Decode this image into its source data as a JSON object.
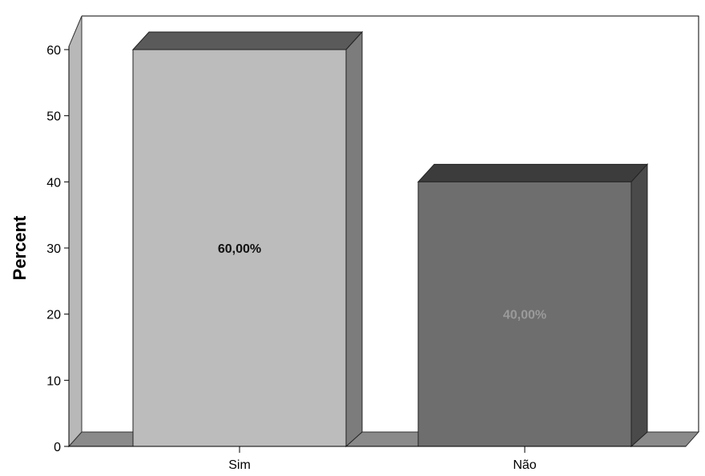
{
  "chart_data": {
    "type": "bar",
    "style": "3d",
    "categories": [
      "Sim",
      "Não"
    ],
    "values": [
      60.0,
      40.0
    ],
    "data_labels": [
      "60,00%",
      "40,00%"
    ],
    "ylabel": "Percent",
    "xlabel": "",
    "ylim": [
      0,
      60
    ],
    "yticks": [
      0,
      10,
      20,
      30,
      40,
      50,
      60
    ],
    "grid": false,
    "legend": "none",
    "colors": {
      "bar_1_front": "#bcbcbc",
      "bar_1_side": "#7c7c7c",
      "bar_1_top": "#5a5a5a",
      "bar_2_front": "#6e6e6e",
      "bar_2_side": "#4a4a4a",
      "bar_2_top": "#3c3c3c",
      "wall": "#b8b8b8",
      "floor": "#8a8a8a",
      "label_1": "#111111",
      "label_2": "#9a9a9a"
    }
  }
}
